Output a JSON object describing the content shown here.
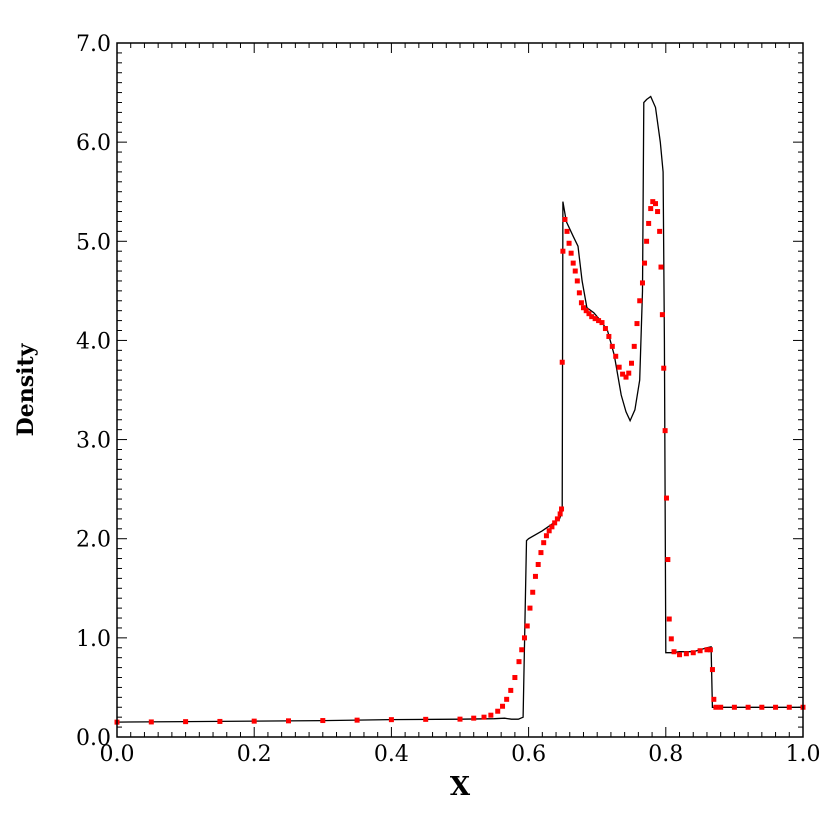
{
  "chart_data": {
    "type": "line",
    "xlabel": "X",
    "ylabel": "Density",
    "xlim": [
      0.0,
      1.0
    ],
    "ylim": [
      0.0,
      7.0
    ],
    "x_ticks": [
      "0.0",
      "0.2",
      "0.4",
      "0.6",
      "0.8",
      "1.0"
    ],
    "y_ticks": [
      "0.0",
      "1.0",
      "2.0",
      "3.0",
      "4.0",
      "5.0",
      "6.0",
      "7.0"
    ],
    "grid": false,
    "legend": "none",
    "series": [
      {
        "style": "solid-line",
        "color": "#000000",
        "points": [
          [
            0.0,
            0.15
          ],
          [
            0.1,
            0.155
          ],
          [
            0.2,
            0.16
          ],
          [
            0.3,
            0.165
          ],
          [
            0.4,
            0.175
          ],
          [
            0.5,
            0.18
          ],
          [
            0.55,
            0.185
          ],
          [
            0.565,
            0.19
          ],
          [
            0.575,
            0.18
          ],
          [
            0.585,
            0.18
          ],
          [
            0.592,
            0.2
          ],
          [
            0.597,
            1.98
          ],
          [
            0.6,
            2.0
          ],
          [
            0.62,
            2.08
          ],
          [
            0.645,
            2.2
          ],
          [
            0.649,
            2.28
          ],
          [
            0.65,
            5.4
          ],
          [
            0.655,
            5.2
          ],
          [
            0.665,
            5.05
          ],
          [
            0.672,
            4.95
          ],
          [
            0.678,
            4.6
          ],
          [
            0.685,
            4.33
          ],
          [
            0.695,
            4.28
          ],
          [
            0.705,
            4.2
          ],
          [
            0.715,
            4.1
          ],
          [
            0.725,
            3.85
          ],
          [
            0.735,
            3.45
          ],
          [
            0.742,
            3.28
          ],
          [
            0.748,
            3.19
          ],
          [
            0.755,
            3.3
          ],
          [
            0.762,
            3.6
          ],
          [
            0.766,
            4.5
          ],
          [
            0.768,
            6.4
          ],
          [
            0.772,
            6.43
          ],
          [
            0.778,
            6.46
          ],
          [
            0.785,
            6.35
          ],
          [
            0.792,
            6.0
          ],
          [
            0.796,
            5.7
          ],
          [
            0.798,
            4.0
          ],
          [
            0.8,
            0.85
          ],
          [
            0.81,
            0.85
          ],
          [
            0.82,
            0.86
          ],
          [
            0.84,
            0.86
          ],
          [
            0.86,
            0.9
          ],
          [
            0.866,
            0.91
          ],
          [
            0.868,
            0.3
          ],
          [
            0.9,
            0.3
          ],
          [
            1.0,
            0.3
          ]
        ]
      },
      {
        "style": "square-markers",
        "color": "#ff0000",
        "points": [
          [
            0.0,
            0.15
          ],
          [
            0.05,
            0.152
          ],
          [
            0.1,
            0.155
          ],
          [
            0.15,
            0.157
          ],
          [
            0.2,
            0.16
          ],
          [
            0.25,
            0.163
          ],
          [
            0.3,
            0.166
          ],
          [
            0.35,
            0.17
          ],
          [
            0.4,
            0.175
          ],
          [
            0.45,
            0.178
          ],
          [
            0.5,
            0.18
          ],
          [
            0.52,
            0.19
          ],
          [
            0.535,
            0.2
          ],
          [
            0.545,
            0.22
          ],
          [
            0.555,
            0.26
          ],
          [
            0.562,
            0.31
          ],
          [
            0.568,
            0.38
          ],
          [
            0.574,
            0.47
          ],
          [
            0.58,
            0.6
          ],
          [
            0.586,
            0.76
          ],
          [
            0.59,
            0.88
          ],
          [
            0.594,
            1.0
          ],
          [
            0.598,
            1.12
          ],
          [
            0.602,
            1.3
          ],
          [
            0.606,
            1.46
          ],
          [
            0.61,
            1.62
          ],
          [
            0.614,
            1.74
          ],
          [
            0.618,
            1.86
          ],
          [
            0.622,
            1.96
          ],
          [
            0.626,
            2.03
          ],
          [
            0.63,
            2.08
          ],
          [
            0.634,
            2.12
          ],
          [
            0.638,
            2.16
          ],
          [
            0.642,
            2.2
          ],
          [
            0.646,
            2.25
          ],
          [
            0.648,
            2.3
          ],
          [
            0.649,
            3.78
          ],
          [
            0.65,
            4.9
          ],
          [
            0.653,
            5.22
          ],
          [
            0.656,
            5.1
          ],
          [
            0.659,
            4.98
          ],
          [
            0.662,
            4.88
          ],
          [
            0.665,
            4.78
          ],
          [
            0.668,
            4.7
          ],
          [
            0.671,
            4.6
          ],
          [
            0.674,
            4.48
          ],
          [
            0.677,
            4.38
          ],
          [
            0.68,
            4.33
          ],
          [
            0.684,
            4.3
          ],
          [
            0.688,
            4.27
          ],
          [
            0.692,
            4.24
          ],
          [
            0.697,
            4.22
          ],
          [
            0.702,
            4.2
          ],
          [
            0.707,
            4.18
          ],
          [
            0.712,
            4.12
          ],
          [
            0.717,
            4.04
          ],
          [
            0.722,
            3.94
          ],
          [
            0.727,
            3.84
          ],
          [
            0.732,
            3.73
          ],
          [
            0.737,
            3.66
          ],
          [
            0.742,
            3.63
          ],
          [
            0.746,
            3.67
          ],
          [
            0.75,
            3.77
          ],
          [
            0.754,
            3.94
          ],
          [
            0.758,
            4.17
          ],
          [
            0.762,
            4.4
          ],
          [
            0.766,
            4.58
          ],
          [
            0.769,
            4.78
          ],
          [
            0.772,
            5.0
          ],
          [
            0.775,
            5.18
          ],
          [
            0.778,
            5.33
          ],
          [
            0.781,
            5.4
          ],
          [
            0.785,
            5.38
          ],
          [
            0.788,
            5.3
          ],
          [
            0.791,
            5.1
          ],
          [
            0.793,
            4.74
          ],
          [
            0.795,
            4.26
          ],
          [
            0.797,
            3.72
          ],
          [
            0.799,
            3.09
          ],
          [
            0.801,
            2.41
          ],
          [
            0.803,
            1.79
          ],
          [
            0.805,
            1.19
          ],
          [
            0.808,
            0.99
          ],
          [
            0.812,
            0.86
          ],
          [
            0.82,
            0.83
          ],
          [
            0.83,
            0.84
          ],
          [
            0.84,
            0.85
          ],
          [
            0.85,
            0.87
          ],
          [
            0.86,
            0.88
          ],
          [
            0.865,
            0.88
          ],
          [
            0.868,
            0.68
          ],
          [
            0.87,
            0.38
          ],
          [
            0.873,
            0.3
          ],
          [
            0.88,
            0.3
          ],
          [
            0.9,
            0.3
          ],
          [
            0.92,
            0.3
          ],
          [
            0.94,
            0.3
          ],
          [
            0.96,
            0.3
          ],
          [
            0.98,
            0.3
          ],
          [
            1.0,
            0.3
          ]
        ]
      }
    ]
  }
}
